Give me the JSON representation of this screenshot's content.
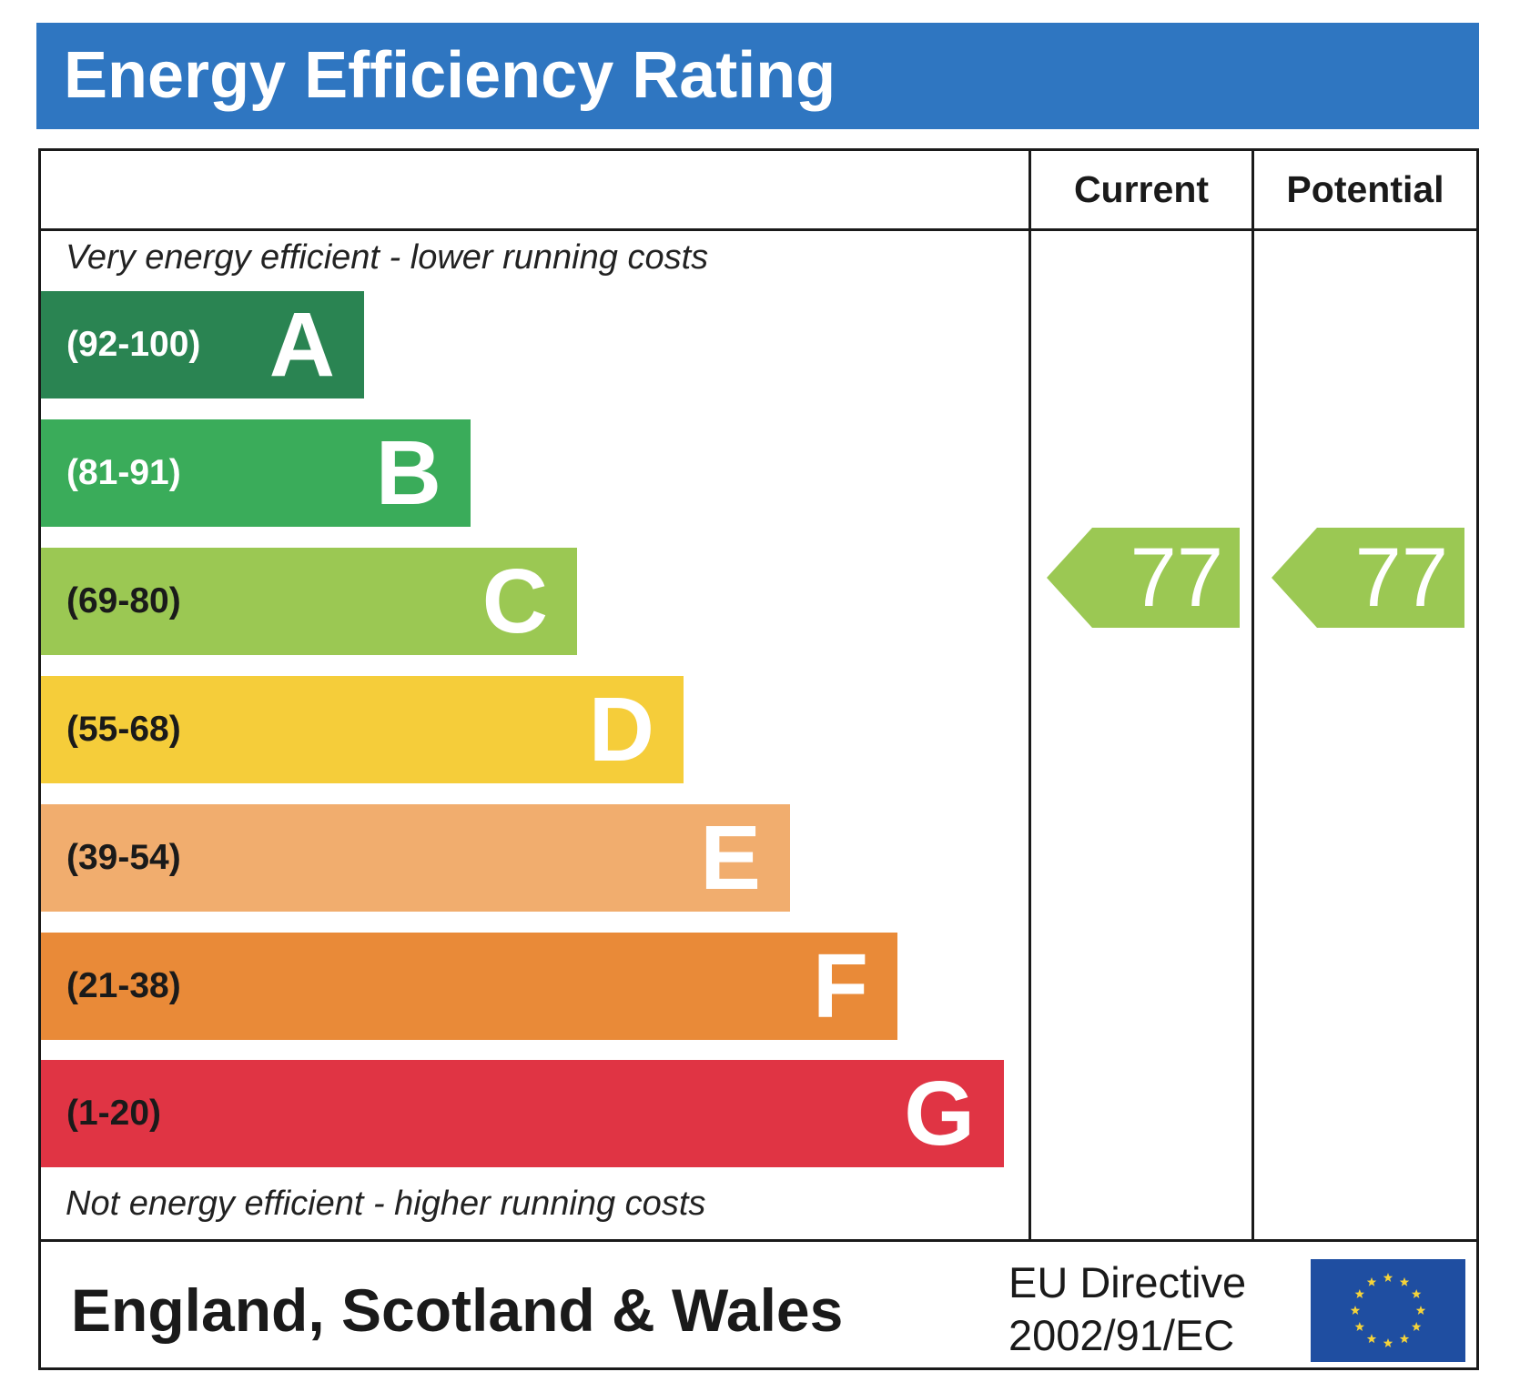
{
  "title": "Energy Efficiency Rating",
  "columns": {
    "current": "Current",
    "potential": "Potential"
  },
  "top_note": "Very energy efficient - lower running costs",
  "bottom_note": "Not energy efficient - higher running costs",
  "bands": [
    {
      "range": "(92-100)",
      "letter": "A",
      "color": "#2a8452",
      "range_color": "#ffffff"
    },
    {
      "range": "(81-91)",
      "letter": "B",
      "color": "#3aac5a",
      "range_color": "#ffffff"
    },
    {
      "range": "(69-80)",
      "letter": "C",
      "color": "#9bc853",
      "range_color": "#1a1a1a"
    },
    {
      "range": "(55-68)",
      "letter": "D",
      "color": "#f5cd3a",
      "range_color": "#1a1a1a"
    },
    {
      "range": "(39-54)",
      "letter": "E",
      "color": "#f1ad6e",
      "range_color": "#1a1a1a"
    },
    {
      "range": "(21-38)",
      "letter": "F",
      "color": "#e98a38",
      "range_color": "#1a1a1a"
    },
    {
      "range": "(1-20)",
      "letter": "G",
      "color": "#e03444",
      "range_color": "#1a1a1a"
    }
  ],
  "ratings": {
    "current": {
      "value": "77",
      "band": "C",
      "color": "#9bc853"
    },
    "potential": {
      "value": "77",
      "band": "C",
      "color": "#9bc853"
    }
  },
  "footer": {
    "region": "England, Scotland & Wales",
    "directive_line1": "EU Directive",
    "directive_line2": "2002/91/EC",
    "flag_color": "#1f4ea1",
    "star_color": "#f5d33a"
  }
}
